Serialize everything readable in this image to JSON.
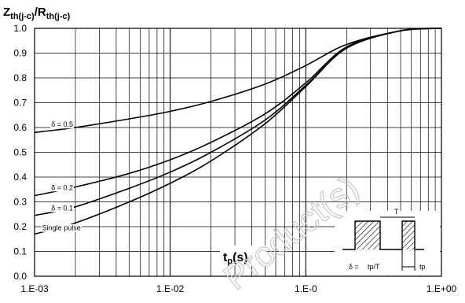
{
  "chart_data": {
    "type": "line",
    "title": {
      "main_1": "Z",
      "sub_1": "th(j-c)",
      "slash": "/",
      "main_2": "R",
      "sub_2": "th(j-c)"
    },
    "xlabel": {
      "main": "t",
      "sub": "p",
      "rest": "(s)"
    },
    "x_scale": "log",
    "xlim": [
      0.001,
      1
    ],
    "ylim": [
      0.0,
      1.0
    ],
    "grid": true,
    "y_ticks": [
      "0.0",
      "0.1",
      "0.2",
      "0.3",
      "0.4",
      "0.5",
      "0.6",
      "0.7",
      "0.8",
      "0.9",
      "1.0"
    ],
    "x_ticks": [
      {
        "value": 0.001,
        "label": "1.E-03"
      },
      {
        "value": 0.01,
        "label": "1.E-02"
      },
      {
        "value": 0.1,
        "label": "1.E-0"
      },
      {
        "value": 1,
        "label": "1.E+00"
      }
    ],
    "series": [
      {
        "name": "δ = 0.5",
        "x": [
          0.001,
          0.002,
          0.005,
          0.01,
          0.02,
          0.05,
          0.1,
          0.2,
          0.5,
          1.0
        ],
        "y": [
          0.58,
          0.6,
          0.635,
          0.665,
          0.705,
          0.775,
          0.85,
          0.935,
          0.99,
          1.0
        ]
      },
      {
        "name": "δ = 0.2",
        "x": [
          0.001,
          0.002,
          0.005,
          0.01,
          0.02,
          0.05,
          0.1,
          0.2,
          0.5,
          1.0
        ],
        "y": [
          0.325,
          0.36,
          0.415,
          0.47,
          0.54,
          0.655,
          0.78,
          0.925,
          0.99,
          1.0
        ]
      },
      {
        "name": "δ = 0.1",
        "x": [
          0.001,
          0.002,
          0.005,
          0.01,
          0.02,
          0.05,
          0.1,
          0.2,
          0.5,
          1.0
        ],
        "y": [
          0.245,
          0.28,
          0.355,
          0.42,
          0.5,
          0.63,
          0.77,
          0.92,
          0.99,
          1.0
        ]
      },
      {
        "name": "Single pulse",
        "x": [
          0.001,
          0.002,
          0.005,
          0.01,
          0.02,
          0.05,
          0.1,
          0.2,
          0.5,
          1.0
        ],
        "y": [
          0.17,
          0.215,
          0.3,
          0.375,
          0.465,
          0.615,
          0.765,
          0.92,
          0.99,
          1.0
        ]
      }
    ],
    "inset": {
      "delta_label": "δ =",
      "delta_value": "tp/T",
      "tp_label": "tp",
      "t_label": "T"
    },
    "watermark": "Product(s)"
  }
}
